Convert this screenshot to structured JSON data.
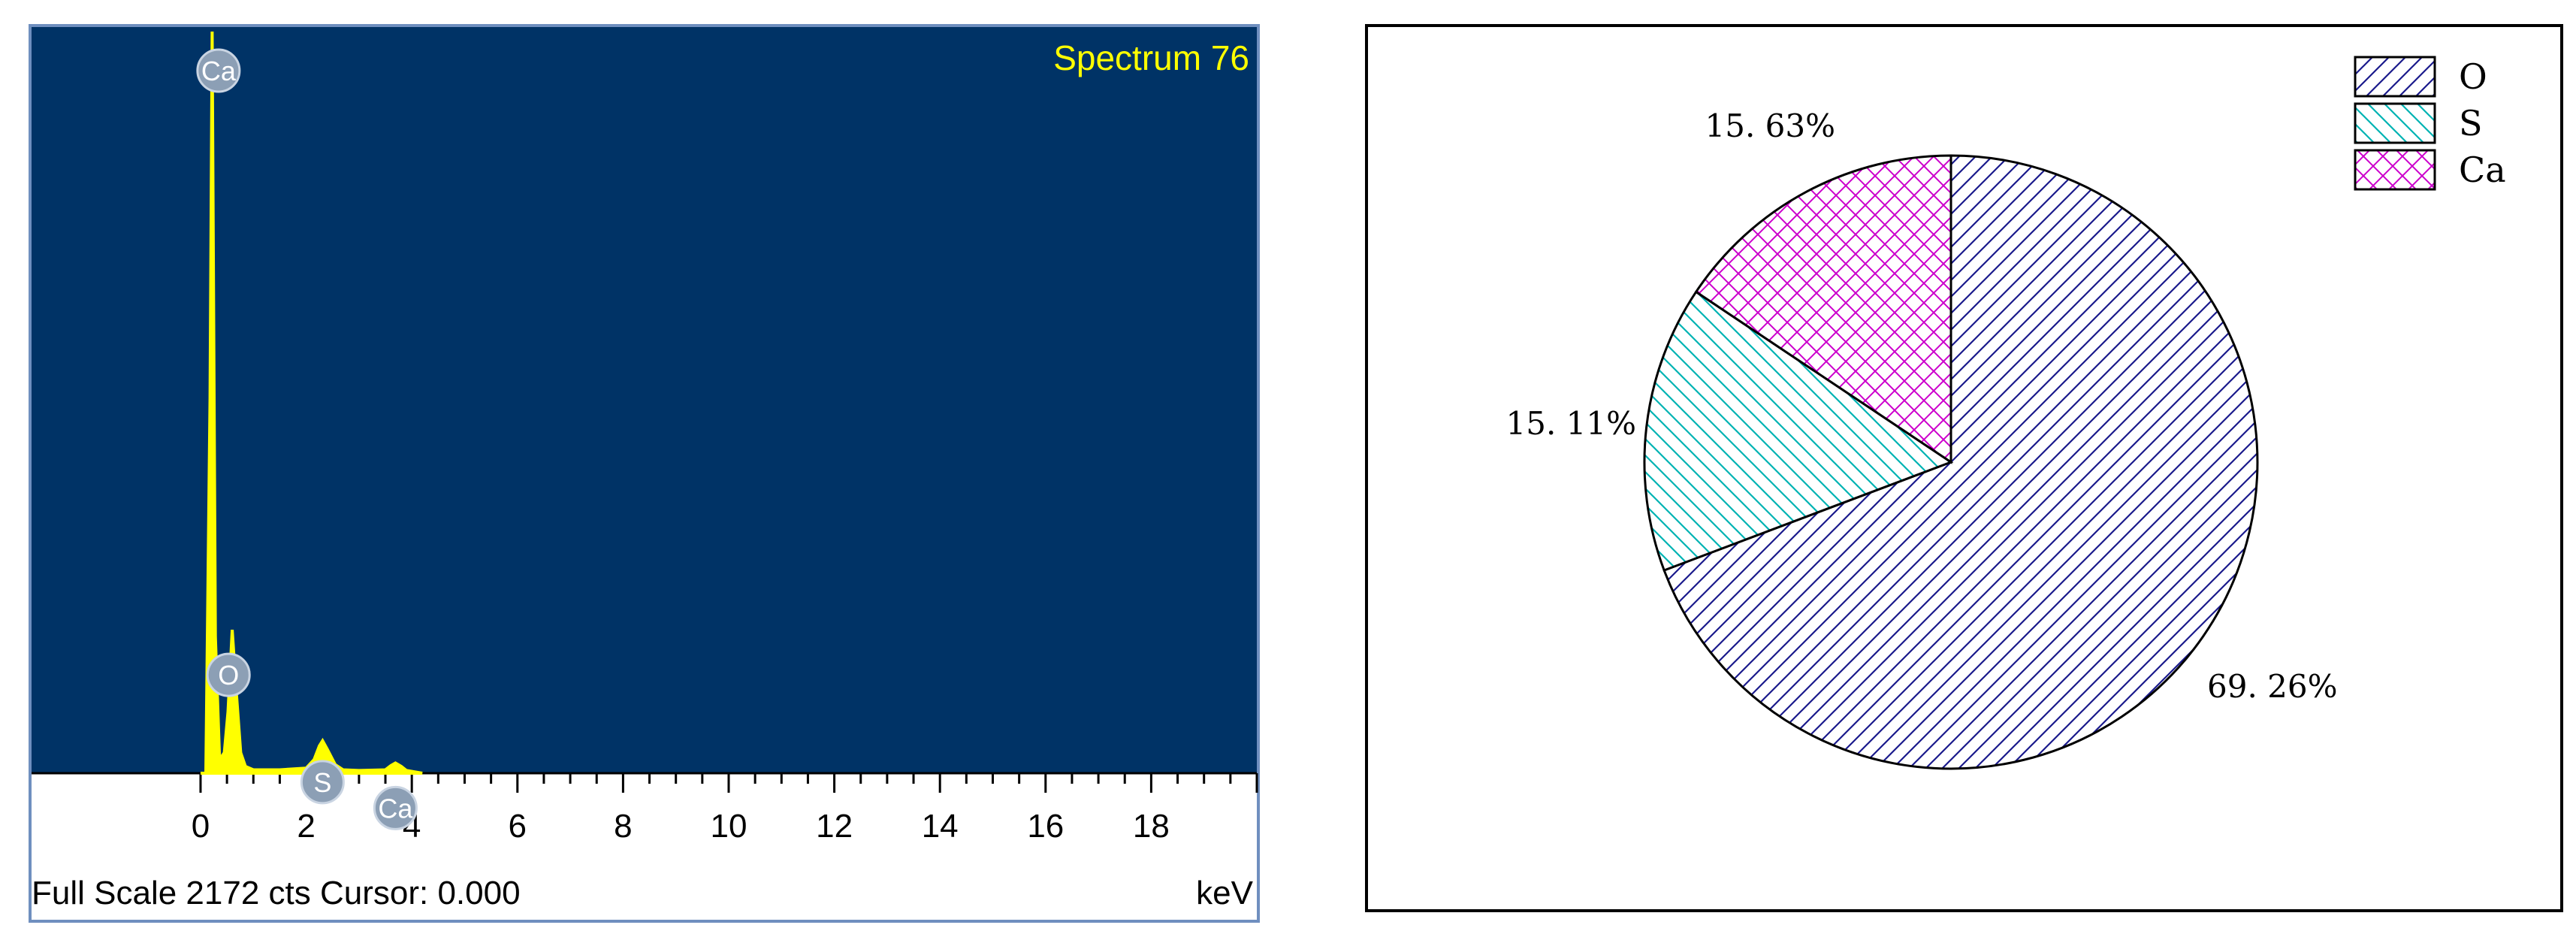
{
  "chart_data": [
    {
      "type": "line",
      "title": "Spectrum 76",
      "xlabel": "keV",
      "footer": "Full Scale 2172 cts Cursor: 0.000",
      "xlim": [
        -3.2,
        20
      ],
      "ylim": [
        0,
        2172
      ],
      "x_ticks": [
        "0",
        "2",
        "4",
        "6",
        "8",
        "10",
        "12",
        "14",
        "16",
        "18"
      ],
      "background_color": "#003366",
      "series_color": "#ffff00",
      "series": [
        {
          "x": [
            0.0,
            0.1,
            0.18,
            0.22,
            0.28,
            0.36,
            0.45,
            0.52,
            0.6,
            0.68,
            0.76,
            0.85,
            1.0,
            1.5,
            2.0,
            2.15,
            2.25,
            2.31,
            2.4,
            2.55,
            2.7,
            3.0,
            3.5,
            3.6,
            3.69,
            3.8,
            3.9,
            4.2
          ],
          "y": [
            0,
            0,
            1100,
            2172,
            400,
            40,
            60,
            180,
            420,
            230,
            60,
            20,
            10,
            10,
            15,
            40,
            80,
            95,
            70,
            25,
            10,
            8,
            10,
            22,
            30,
            20,
            8,
            0
          ]
        }
      ],
      "peaks": [
        {
          "label": "Ca",
          "x": 0.34,
          "y": 2172
        },
        {
          "label": "O",
          "x": 0.53,
          "y": 420
        },
        {
          "label": "S",
          "x": 2.31,
          "y": 95
        },
        {
          "label": "Ca",
          "x": 3.69,
          "y": 30
        }
      ]
    },
    {
      "type": "pie",
      "legend_position": "top-right",
      "slices": [
        {
          "label": "O",
          "value": 69.26,
          "display": "69. 26%",
          "color": "#1a1a8c"
        },
        {
          "label": "S",
          "value": 15.11,
          "display": "15. 11%",
          "color": "#00b3b3"
        },
        {
          "label": "Ca",
          "value": 15.63,
          "display": "15. 63%",
          "color": "#cc00cc"
        }
      ]
    }
  ]
}
